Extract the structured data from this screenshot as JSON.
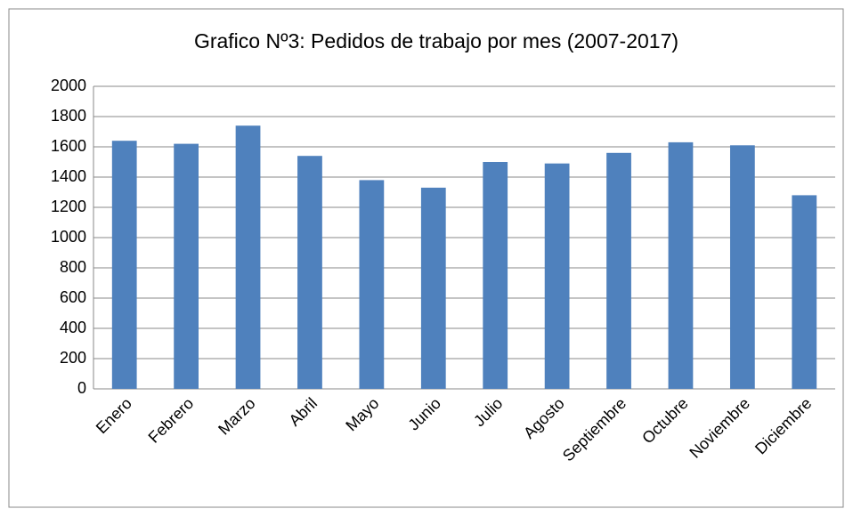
{
  "chart_data": {
    "type": "bar",
    "title": "Grafico Nº3: Pedidos de trabajo por mes (2007-2017)",
    "categories": [
      "Enero",
      "Febrero",
      "Marzo",
      "Abril",
      "Mayo",
      "Junio",
      "Julio",
      "Agosto",
      "Septiembre",
      "Octubre",
      "Noviembre",
      "Diciembre"
    ],
    "values": [
      1640,
      1620,
      1740,
      1540,
      1380,
      1330,
      1500,
      1490,
      1560,
      1630,
      1610,
      1280
    ],
    "color": "#4f81bd",
    "ylim": [
      0,
      2000
    ],
    "yticks": [
      0,
      200,
      400,
      600,
      800,
      1000,
      1200,
      1400,
      1600,
      1800,
      2000
    ],
    "grid": true
  }
}
